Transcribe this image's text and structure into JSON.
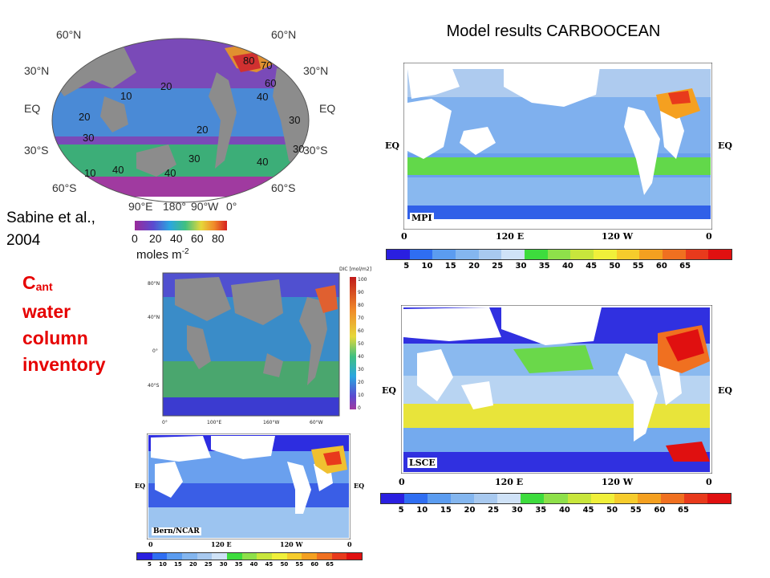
{
  "title": "Model results CARBOOCEAN",
  "citation_line1": "Sabine et al.,",
  "citation_line2": "2004",
  "cant": {
    "c": "C",
    "sub": "ant",
    "line2": "water",
    "line3": "column",
    "line4": "inventory"
  },
  "sabine_map": {
    "lat_labels": [
      "60°N",
      "30°N",
      "EQ",
      "30°S",
      "60°S"
    ],
    "lat_labels_right": [
      "60°N",
      "30°N",
      "EQ",
      "30°S",
      "60°S"
    ],
    "lon_labels": [
      "90°E",
      "180°",
      "90°W",
      "0°"
    ],
    "contour_labels": [
      "80",
      "70",
      "60",
      "40",
      "30",
      "20",
      "20",
      "20",
      "10",
      "30",
      "30",
      "40",
      "10",
      "30",
      "40",
      "40"
    ],
    "colorbar_ticks": [
      "0",
      "20",
      "40",
      "60",
      "80"
    ],
    "colorbar_unit": "moles m",
    "colorbar_unit_exp": "-2"
  },
  "obs_map": {
    "colorbar_title": "DIC [mol/m2]",
    "colorbar_ticks": [
      "100",
      "90",
      "80",
      "70",
      "60",
      "50",
      "40",
      "30",
      "20",
      "10",
      "0"
    ],
    "lat_labels": [
      "80°N",
      "40°N",
      "0°",
      "40°S"
    ],
    "lon_labels": [
      "0°",
      "100°E",
      "160°W",
      "60°W"
    ]
  },
  "model_colorbar": {
    "colors": [
      "#2a1fe0",
      "#2f6ef2",
      "#5b9cf0",
      "#84b6ef",
      "#a8c9ef",
      "#cfe2f7",
      "#3ddc3d",
      "#8ee04a",
      "#c8e63c",
      "#f0f03a",
      "#f6cc2c",
      "#f4a020",
      "#f07020",
      "#e83a1c",
      "#e01010"
    ],
    "labels": [
      "5",
      "10",
      "15",
      "20",
      "25",
      "30",
      "35",
      "40",
      "45",
      "50",
      "55",
      "60",
      "65"
    ]
  },
  "mpi": {
    "name": "MPI",
    "eq_left": "EQ",
    "eq_right": "EQ",
    "ticks": [
      "0",
      "120 E",
      "120 W",
      "0"
    ]
  },
  "lsce": {
    "name": "LSCE",
    "eq_left": "EQ",
    "eq_right": "EQ",
    "ticks": [
      "0",
      "120 E",
      "120 W",
      "0"
    ]
  },
  "bern": {
    "name": "Bern/NCAR",
    "eq_left": "EQ",
    "eq_right": "EQ",
    "ticks": [
      "0",
      "120 E",
      "120 W",
      "0"
    ]
  }
}
